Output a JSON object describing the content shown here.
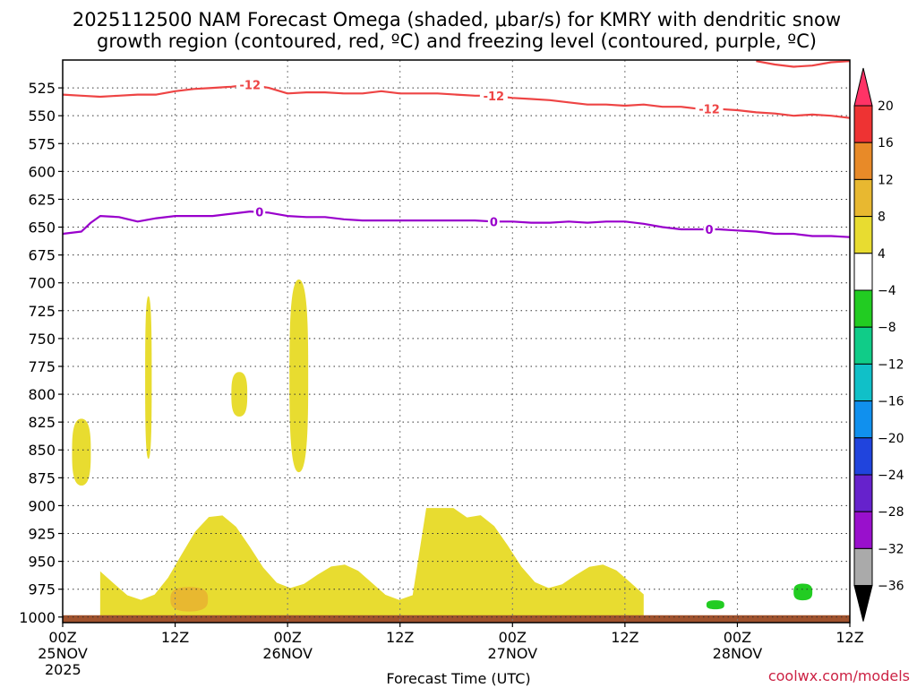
{
  "chart_data": {
    "type": "time-height-contour",
    "title_line1": "2025112500 NAM Forecast Omega (shaded, μbar/s) for KMRY with dendritic snow",
    "title_line2": "growth region (contoured, red, ºC) and freezing level (contoured, purple, ºC)",
    "xlabel": "Forecast Time (UTC)",
    "credit": "coolwx.com/models",
    "x_range_hours": [
      0,
      84
    ],
    "x_ticks": [
      {
        "hour": 0,
        "label": "00Z",
        "sub": "25NOV",
        "sub2": "2025"
      },
      {
        "hour": 12,
        "label": "12Z",
        "sub": "",
        "sub2": ""
      },
      {
        "hour": 24,
        "label": "00Z",
        "sub": "26NOV",
        "sub2": ""
      },
      {
        "hour": 36,
        "label": "12Z",
        "sub": "",
        "sub2": ""
      },
      {
        "hour": 48,
        "label": "00Z",
        "sub": "27NOV",
        "sub2": ""
      },
      {
        "hour": 60,
        "label": "12Z",
        "sub": "",
        "sub2": ""
      },
      {
        "hour": 72,
        "label": "00Z",
        "sub": "28NOV",
        "sub2": ""
      },
      {
        "hour": 84,
        "label": "12Z",
        "sub": "",
        "sub2": ""
      }
    ],
    "y_range_hpa": [
      1005,
      500
    ],
    "y_ticks": [
      525,
      550,
      575,
      600,
      625,
      650,
      675,
      700,
      725,
      750,
      775,
      800,
      825,
      850,
      875,
      900,
      925,
      950,
      975,
      1000
    ],
    "colorbar": {
      "labels": [
        "20",
        "16",
        "12",
        "8",
        "4",
        "−4",
        "−8",
        "−12",
        "−16",
        "−20",
        "−24",
        "−28",
        "−32",
        "−36"
      ],
      "colors": [
        "#ff3366",
        "#ee3333",
        "#e88a28",
        "#e8b830",
        "#e8dc30",
        "#ffffff",
        "#22cc22",
        "#10cc88",
        "#10c0c8",
        "#1090ee",
        "#2044dd",
        "#6622cc",
        "#9910cc",
        "#aaaaaa",
        "#000000"
      ]
    },
    "colors": {
      "minus12": "#ee4444",
      "freezing": "#9900cc",
      "ground": "#a0522d",
      "omega_4_8": "#e8dc30",
      "omega_8_12": "#e8b830",
      "omega_neg_4_8": "#22cc22"
    },
    "series": [
      {
        "name": "-12C isotherm",
        "contour_label": "-12",
        "hours": [
          0,
          2,
          4,
          6,
          8,
          10,
          12,
          14,
          16,
          18,
          20,
          22,
          24,
          26,
          28,
          30,
          32,
          34,
          36,
          38,
          40,
          42,
          44,
          46,
          48,
          50,
          52,
          54,
          56,
          58,
          60,
          62,
          64,
          66,
          68,
          70,
          72,
          74,
          76,
          78,
          80,
          82,
          84
        ],
        "pressure": [
          531,
          532,
          533,
          532,
          531,
          531,
          528,
          526,
          525,
          524,
          522,
          525,
          530,
          529,
          529,
          530,
          530,
          528,
          530,
          530,
          530,
          531,
          532,
          532,
          534,
          535,
          536,
          538,
          540,
          540,
          541,
          540,
          542,
          542,
          544,
          544,
          545,
          547,
          548,
          550,
          549,
          550,
          552
        ]
      },
      {
        "name": "-12C isotherm (upper)",
        "contour_label": "",
        "hours": [
          74,
          76,
          78,
          80,
          82,
          84
        ],
        "pressure": [
          501,
          504,
          506,
          505,
          502,
          501
        ]
      },
      {
        "name": "0C freezing level",
        "contour_label": "0",
        "hours": [
          0,
          2,
          3,
          4,
          6,
          8,
          10,
          12,
          14,
          16,
          18,
          20,
          22,
          24,
          26,
          28,
          30,
          32,
          34,
          36,
          38,
          40,
          42,
          44,
          46,
          48,
          50,
          52,
          54,
          56,
          58,
          60,
          62,
          64,
          66,
          68,
          70,
          72,
          74,
          76,
          78,
          80,
          82,
          84
        ],
        "pressure": [
          656,
          654,
          646,
          640,
          641,
          645,
          642,
          640,
          640,
          640,
          638,
          636,
          637,
          640,
          641,
          641,
          643,
          644,
          644,
          644,
          644,
          644,
          644,
          644,
          645,
          645,
          646,
          646,
          645,
          646,
          645,
          645,
          647,
          650,
          652,
          652,
          652,
          653,
          654,
          656,
          656,
          658,
          658,
          659
        ]
      }
    ],
    "omega_regions": [
      {
        "range": "4 to 8",
        "sign": "ascent",
        "hour_start": 1.0,
        "hour_end": 3.0,
        "p_top": 822,
        "p_bottom": 882
      },
      {
        "range": "4 to 8",
        "sign": "ascent",
        "hour_start": 8.8,
        "hour_end": 9.5,
        "p_top": 712,
        "p_bottom": 858
      },
      {
        "range": "4 to 8",
        "sign": "ascent",
        "hour_start": 18.0,
        "hour_end": 19.7,
        "p_top": 780,
        "p_bottom": 820
      },
      {
        "range": "4 to 8",
        "sign": "ascent",
        "hour_start": 24.2,
        "hour_end": 26.2,
        "p_top": 697,
        "p_bottom": 870
      },
      {
        "range": "4 to 8",
        "sign": "ascent",
        "hour_start": 4.0,
        "hour_end": 62.0,
        "p_top": 897,
        "p_bottom": 1000
      },
      {
        "range": "8 to 12",
        "sign": "ascent",
        "hour_start": 11.5,
        "hour_end": 15.5,
        "p_top": 973,
        "p_bottom": 995
      },
      {
        "range": "-4 to -8",
        "sign": "descent",
        "hour_start": 68.7,
        "hour_end": 70.6,
        "p_top": 985,
        "p_bottom": 993
      },
      {
        "range": "-4 to -8",
        "sign": "descent",
        "hour_start": 78.0,
        "hour_end": 80.0,
        "p_top": 970,
        "p_bottom": 985
      }
    ]
  }
}
